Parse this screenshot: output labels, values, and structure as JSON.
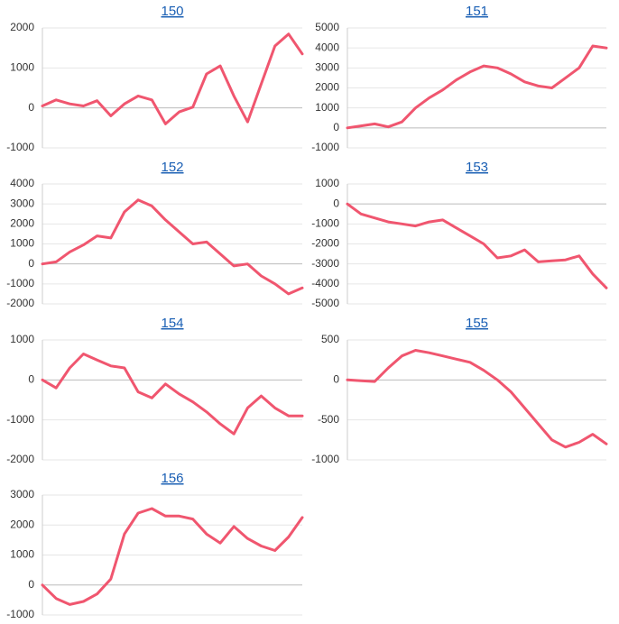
{
  "chart_data": [
    {
      "type": "line",
      "title": "150",
      "color": "#f0566f",
      "grid": true,
      "ylim": [
        -1000,
        2000
      ],
      "yticks": [
        2000,
        1000,
        0,
        -1000
      ],
      "values": [
        50,
        200,
        100,
        50,
        180,
        -200,
        100,
        300,
        200,
        -400,
        -100,
        20,
        850,
        1050,
        300,
        -350,
        600,
        1550,
        1850,
        1350
      ]
    },
    {
      "type": "line",
      "title": "151",
      "color": "#f0566f",
      "grid": true,
      "ylim": [
        -1000,
        5000
      ],
      "yticks": [
        5000,
        4000,
        3000,
        2000,
        1000,
        0,
        -1000
      ],
      "values": [
        0,
        100,
        200,
        50,
        300,
        1000,
        1500,
        1900,
        2400,
        2800,
        3100,
        3000,
        2700,
        2300,
        2100,
        2000,
        2500,
        3000,
        4100,
        4000
      ]
    },
    {
      "type": "line",
      "title": "152",
      "color": "#f0566f",
      "grid": true,
      "ylim": [
        -2000,
        4000
      ],
      "yticks": [
        4000,
        3000,
        2000,
        1000,
        0,
        -1000,
        -2000
      ],
      "values": [
        0,
        100,
        600,
        950,
        1400,
        1300,
        2600,
        3200,
        2900,
        2200,
        1600,
        1000,
        1100,
        500,
        -100,
        0,
        -600,
        -1000,
        -1500,
        -1200
      ]
    },
    {
      "type": "line",
      "title": "153",
      "color": "#f0566f",
      "grid": true,
      "ylim": [
        -5000,
        1000
      ],
      "yticks": [
        1000,
        0,
        -1000,
        -2000,
        -3000,
        -4000,
        -5000
      ],
      "values": [
        0,
        -500,
        -700,
        -900,
        -1000,
        -1100,
        -900,
        -800,
        -1200,
        -1600,
        -2000,
        -2700,
        -2600,
        -2300,
        -2900,
        -2850,
        -2800,
        -2600,
        -3500,
        -4200
      ]
    },
    {
      "type": "line",
      "title": "154",
      "color": "#f0566f",
      "grid": true,
      "ylim": [
        -2000,
        1000
      ],
      "yticks": [
        1000,
        0,
        -1000,
        -2000
      ],
      "values": [
        0,
        -200,
        300,
        650,
        500,
        350,
        300,
        -300,
        -450,
        -100,
        -350,
        -550,
        -800,
        -1100,
        -1350,
        -700,
        -400,
        -700,
        -900,
        -900
      ]
    },
    {
      "type": "line",
      "title": "155",
      "color": "#f0566f",
      "grid": true,
      "ylim": [
        -1000,
        500
      ],
      "yticks": [
        500,
        0,
        -500,
        -1000
      ],
      "values": [
        0,
        -10,
        -20,
        150,
        300,
        370,
        340,
        300,
        260,
        220,
        120,
        0,
        -150,
        -350,
        -550,
        -750,
        -840,
        -780,
        -680,
        -800
      ]
    },
    {
      "type": "line",
      "title": "156",
      "color": "#f0566f",
      "grid": true,
      "ylim": [
        -1000,
        3000
      ],
      "yticks": [
        3000,
        2000,
        1000,
        0,
        -1000
      ],
      "values": [
        0,
        -450,
        -650,
        -550,
        -300,
        200,
        1700,
        2400,
        2550,
        2300,
        2300,
        2200,
        1700,
        1400,
        1950,
        1550,
        1300,
        1150,
        1600,
        2250
      ]
    }
  ]
}
